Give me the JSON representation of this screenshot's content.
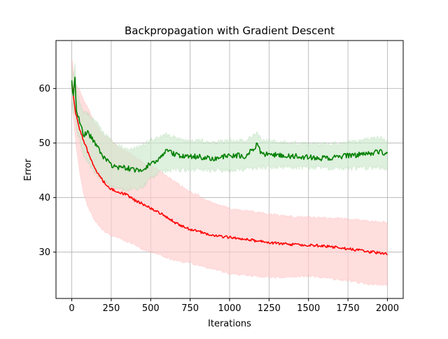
{
  "chart_data": {
    "type": "line",
    "title": "Backpropagation with Gradient Descent",
    "xlabel": "Iterations",
    "ylabel": "Error",
    "xlim": [
      -100,
      2100
    ],
    "ylim": [
      21.5,
      68.8
    ],
    "xticks": [
      0,
      250,
      500,
      750,
      1000,
      1250,
      1500,
      1750,
      2000
    ],
    "yticks": [
      30,
      40,
      50,
      60
    ],
    "grid": true,
    "series": [
      {
        "color": "#ff0000",
        "band_color": "#ffcccc",
        "x": [
          0,
          25,
          50,
          75,
          100,
          150,
          200,
          250,
          300,
          350,
          400,
          450,
          500,
          550,
          600,
          650,
          700,
          750,
          800,
          850,
          900,
          950,
          1000,
          1100,
          1200,
          1300,
          1400,
          1500,
          1600,
          1700,
          1800,
          1900,
          2000
        ],
        "mean": [
          61.0,
          55.5,
          52.5,
          50.5,
          48.5,
          45.0,
          43.0,
          41.5,
          41.0,
          40.5,
          39.5,
          38.8,
          38.0,
          37.3,
          36.5,
          35.5,
          34.8,
          34.2,
          33.8,
          33.4,
          33.1,
          32.9,
          32.7,
          32.3,
          32.0,
          31.6,
          31.4,
          31.3,
          31.1,
          30.8,
          30.4,
          30.0,
          29.8
        ],
        "lower": [
          58.0,
          50.0,
          44.5,
          40.5,
          38.5,
          35.5,
          34.0,
          33.0,
          32.5,
          32.0,
          31.3,
          30.5,
          30.0,
          29.6,
          29.0,
          28.5,
          28.2,
          28.0,
          27.6,
          27.2,
          26.9,
          26.5,
          26.0,
          25.8,
          25.5,
          25.4,
          25.5,
          25.6,
          25.3,
          24.9,
          24.5,
          24.1,
          24.0
        ],
        "upper": [
          65.5,
          61.0,
          59.5,
          58.0,
          56.5,
          53.5,
          51.5,
          50.5,
          49.0,
          48.5,
          47.5,
          46.5,
          46.0,
          45.0,
          44.0,
          43.0,
          42.0,
          41.0,
          40.5,
          39.5,
          39.0,
          38.5,
          38.0,
          37.6,
          37.2,
          36.8,
          36.5,
          36.4,
          36.3,
          36.2,
          35.9,
          35.6,
          35.5
        ]
      },
      {
        "color": "#008000",
        "band_color": "#cde8cd",
        "x": [
          0,
          10,
          20,
          30,
          50,
          75,
          100,
          150,
          200,
          250,
          300,
          350,
          400,
          450,
          500,
          550,
          600,
          650,
          700,
          800,
          900,
          1000,
          1100,
          1175,
          1200,
          1300,
          1400,
          1500,
          1600,
          1700,
          1800,
          1900,
          1950,
          2000
        ],
        "mean": [
          61.0,
          58.5,
          62.0,
          56.0,
          54.0,
          51.5,
          52.0,
          50.0,
          47.5,
          46.0,
          45.5,
          45.5,
          45.0,
          45.0,
          46.5,
          47.0,
          48.5,
          48.0,
          47.5,
          47.5,
          47.0,
          47.8,
          47.6,
          49.8,
          48.0,
          47.8,
          47.6,
          47.4,
          47.2,
          47.5,
          47.8,
          48.2,
          48.5,
          48.0
        ],
        "lower": [
          58.0,
          55.0,
          56.0,
          52.5,
          50.5,
          47.5,
          46.5,
          44.5,
          43.0,
          42.0,
          41.5,
          41.5,
          41.5,
          42.0,
          43.5,
          44.5,
          45.0,
          45.0,
          45.0,
          45.0,
          45.0,
          45.0,
          45.2,
          45.5,
          45.5,
          45.5,
          45.5,
          45.5,
          45.4,
          45.4,
          45.4,
          45.5,
          45.5,
          45.3
        ],
        "upper": [
          64.0,
          62.0,
          64.5,
          59.5,
          57.5,
          55.5,
          55.5,
          54.0,
          52.0,
          50.5,
          49.5,
          49.0,
          49.0,
          49.5,
          50.5,
          51.0,
          51.5,
          51.0,
          50.5,
          50.5,
          50.0,
          50.5,
          50.5,
          52.0,
          50.5,
          50.3,
          50.0,
          49.8,
          49.8,
          50.0,
          50.3,
          50.8,
          51.0,
          50.5
        ]
      }
    ]
  }
}
